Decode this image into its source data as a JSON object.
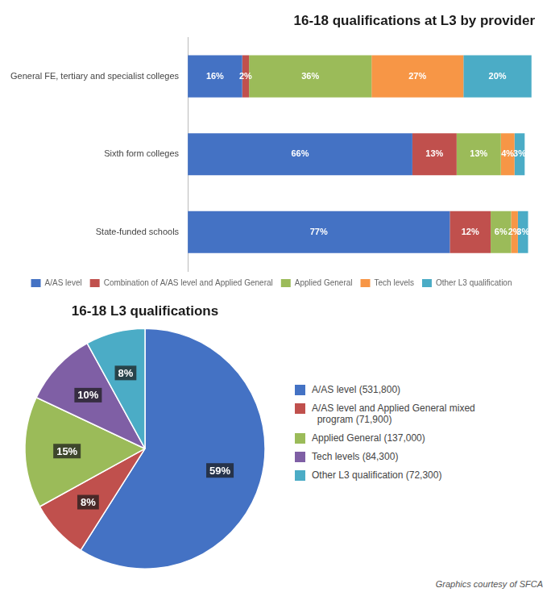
{
  "chart_data": [
    {
      "type": "bar",
      "title": "16-18 qualifications at L3 by provider",
      "orientation": "horizontal",
      "stacked": true,
      "categories": [
        "General FE, tertiary and specialist colleges",
        "Sixth form colleges",
        "State-funded schools"
      ],
      "series": [
        {
          "name": "A/AS level",
          "color": "#4472c4",
          "values": [
            16,
            66,
            77
          ],
          "value_labels": [
            "16%",
            "66%",
            "77%"
          ]
        },
        {
          "name": "Combination of A/AS level and Applied General",
          "color": "#c0504d",
          "values": [
            2,
            13,
            12
          ],
          "value_labels": [
            "2%",
            "13%",
            "12%"
          ]
        },
        {
          "name": "Applied General",
          "color": "#9bbb59",
          "values": [
            36,
            13,
            6
          ],
          "value_labels": [
            "36%",
            "13%",
            "6%"
          ]
        },
        {
          "name": "Tech levels",
          "color": "#f79646",
          "values": [
            27,
            4,
            2
          ],
          "value_labels": [
            "27%",
            "4%",
            "2%"
          ]
        },
        {
          "name": "Other L3 qualification",
          "color": "#4bacc6",
          "values": [
            20,
            3,
            3
          ],
          "value_labels": [
            "20%",
            "3%",
            "3%"
          ]
        }
      ],
      "xlim": [
        0,
        102
      ],
      "data_labels": true,
      "tick_labels": "y",
      "grid": false,
      "legend": "bottom"
    },
    {
      "type": "pie",
      "title": "16-18 L3 qualifications",
      "categories": [
        "A/AS level (531,800)",
        "A/AS level and Applied General mixed\n  program (71,900)",
        "Applied General (137,000)",
        "Tech levels (84,300)",
        "Other L3 qualification (72,300)"
      ],
      "values": [
        59,
        8,
        15,
        10,
        8
      ],
      "value_labels": [
        "59%",
        "8%",
        "15%",
        "10%",
        "8%"
      ],
      "colors": [
        "#4472c4",
        "#c0504d",
        "#9bbb59",
        "#7f5fa5",
        "#4bacc6"
      ],
      "data_labels": true,
      "legend": "right",
      "annotations": [
        "Graphics courtesy of SFCA"
      ]
    }
  ]
}
